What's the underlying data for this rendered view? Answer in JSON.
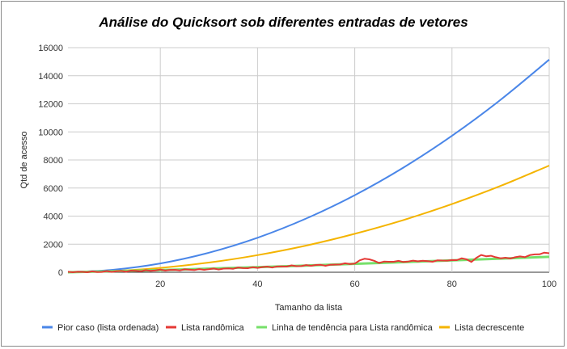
{
  "chart_data": {
    "type": "line",
    "title": "Análise do Quicksort sob diferentes entradas de vetores",
    "xlabel": "Tamanho da lista",
    "ylabel": "Qtd de acesso",
    "xlim": [
      1,
      100
    ],
    "ylim": [
      0,
      16000
    ],
    "x_ticks": [
      20,
      40,
      60,
      80,
      100
    ],
    "y_ticks": [
      0,
      2000,
      4000,
      6000,
      8000,
      10000,
      12000,
      14000,
      16000
    ],
    "grid": true,
    "legend_position": "bottom",
    "series": [
      {
        "name": "Pior caso (lista ordenada)",
        "color": "#4a86e8",
        "kind": "quadratic",
        "x": [
          1,
          10,
          20,
          30,
          40,
          50,
          60,
          70,
          80,
          90,
          100
        ],
        "values": [
          3,
          165,
          630,
          1395,
          2460,
          3825,
          5490,
          7455,
          9720,
          12285,
          15150
        ]
      },
      {
        "name": "Lista randômica",
        "color": "#e53935",
        "kind": "noisy",
        "x": [
          1,
          5,
          10,
          15,
          20,
          25,
          30,
          35,
          40,
          45,
          50,
          55,
          60,
          62,
          65,
          70,
          75,
          80,
          82,
          84,
          86,
          90,
          95,
          97,
          100
        ],
        "values": [
          5,
          20,
          55,
          90,
          150,
          170,
          210,
          280,
          340,
          410,
          480,
          520,
          640,
          980,
          720,
          780,
          800,
          840,
          1000,
          750,
          1250,
          1000,
          1100,
          1300,
          1350
        ]
      },
      {
        "name": "Linha de tendência para Lista randômica",
        "color": "#76e06a",
        "kind": "trend",
        "x": [
          1,
          25,
          50,
          75,
          100
        ],
        "values": [
          0,
          200,
          480,
          780,
          1100
        ]
      },
      {
        "name": "Lista decrescente",
        "color": "#f4b400",
        "kind": "quadratic",
        "x": [
          1,
          10,
          20,
          30,
          40,
          50,
          60,
          70,
          80,
          90,
          100
        ],
        "values": [
          2,
          82,
          310,
          690,
          1220,
          1900,
          2740,
          3720,
          4860,
          6150,
          7600
        ]
      }
    ]
  }
}
